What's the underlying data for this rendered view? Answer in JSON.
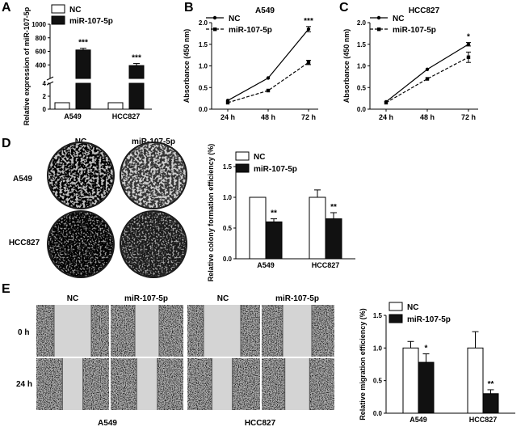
{
  "panels": {
    "A": "A",
    "B": "B",
    "C": "C",
    "D": "D",
    "E": "E"
  },
  "legend": {
    "nc": "NC",
    "mir": "miR-107-5p"
  },
  "colors": {
    "ink": "#000000",
    "white": "#ffffff",
    "plate": "#bdbdbd",
    "plate_dark": "#2a2a2a",
    "scratch": "#c8c8c8",
    "scratch_dark": "#6e6e6e"
  },
  "panel_d_images": {
    "col_nc": "NC",
    "col_mir": "miR-107-5p",
    "row_a549": "A549",
    "row_hcc827": "HCC827"
  },
  "panel_e_images": {
    "col_nc_1": "NC",
    "col_mir_1": "miR-107-5p",
    "col_nc_2": "NC",
    "col_mir_2": "miR-107-5p",
    "row_0h": "0 h",
    "row_24h": "24 h",
    "label_a549": "A549",
    "label_hcc827": "HCC827"
  },
  "chart_data": [
    {
      "id": "A",
      "type": "bar",
      "ylabel": "Relative expression of miR-107-5p",
      "categories": [
        "A549",
        "HCC827"
      ],
      "series": [
        {
          "name": "NC",
          "values": [
            1,
            1
          ],
          "errors": [
            0,
            0
          ]
        },
        {
          "name": "miR-107-5p",
          "values": [
            620,
            390
          ],
          "errors": [
            25,
            30
          ]
        }
      ],
      "y_ticks": [
        "0",
        "2",
        "4",
        "400",
        "600",
        "800",
        "1000"
      ],
      "axis_break": {
        "lower_range": [
          0,
          4
        ],
        "upper_range": [
          200,
          1000
        ]
      },
      "significance": [
        "***",
        "***"
      ]
    },
    {
      "id": "B",
      "type": "line",
      "title": "A549",
      "ylabel": "Absorbance (450 nm)",
      "categories": [
        "24 h",
        "48 h",
        "72 h"
      ],
      "ylim": [
        0,
        2.0
      ],
      "y_ticks": [
        "0.0",
        "0.5",
        "1.0",
        "1.5",
        "2.0"
      ],
      "series": [
        {
          "name": "NC",
          "values": [
            0.2,
            0.72,
            1.85
          ],
          "errors": [
            0.02,
            0.02,
            0.06
          ]
        },
        {
          "name": "miR-107-5p",
          "values": [
            0.15,
            0.43,
            1.08
          ],
          "errors": [
            0.02,
            0.02,
            0.05
          ]
        }
      ],
      "significance": "***"
    },
    {
      "id": "C",
      "type": "line",
      "title": "HCC827",
      "ylabel": "Absorbance (450 nm)",
      "categories": [
        "24 h",
        "48 h",
        "72 h"
      ],
      "ylim": [
        0,
        2.0
      ],
      "y_ticks": [
        "0.0",
        "0.5",
        "1.0",
        "1.5",
        "2.0"
      ],
      "series": [
        {
          "name": "NC",
          "values": [
            0.17,
            0.92,
            1.5
          ],
          "errors": [
            0.02,
            0.02,
            0.04
          ]
        },
        {
          "name": "miR-107-5p",
          "values": [
            0.15,
            0.7,
            1.2
          ],
          "errors": [
            0.02,
            0.02,
            0.12
          ]
        }
      ],
      "significance": "*"
    },
    {
      "id": "D",
      "type": "bar",
      "ylabel": "Relative colony formation efficiency (%)",
      "categories": [
        "A549",
        "HCC827"
      ],
      "ylim": [
        0,
        1.5
      ],
      "y_ticks": [
        "0.0",
        "0.5",
        "1.0",
        "1.5"
      ],
      "series": [
        {
          "name": "NC",
          "values": [
            1.0,
            1.0
          ],
          "errors": [
            0,
            0.12
          ]
        },
        {
          "name": "miR-107-5p",
          "values": [
            0.6,
            0.65
          ],
          "errors": [
            0.05,
            0.1
          ]
        }
      ],
      "significance": [
        "**",
        "**"
      ]
    },
    {
      "id": "E",
      "type": "bar",
      "ylabel": "Relative migration efficiency (%)",
      "categories": [
        "A549",
        "HCC827"
      ],
      "ylim": [
        0,
        1.5
      ],
      "y_ticks": [
        "0.0",
        "0.5",
        "1.0",
        "1.5"
      ],
      "series": [
        {
          "name": "NC",
          "values": [
            1.0,
            1.0
          ],
          "errors": [
            0.1,
            0.25
          ]
        },
        {
          "name": "miR-107-5p",
          "values": [
            0.78,
            0.3
          ],
          "errors": [
            0.13,
            0.06
          ]
        }
      ],
      "significance": [
        "*",
        "**"
      ]
    }
  ]
}
